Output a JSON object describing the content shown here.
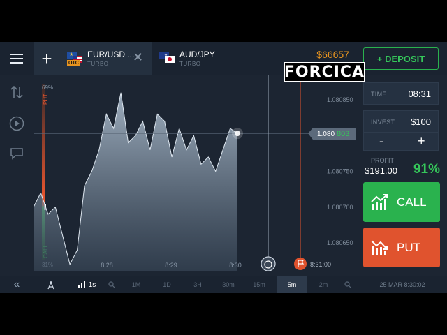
{
  "header": {
    "tabs": [
      {
        "name": "EUR/USD ...",
        "sub": "TURBO",
        "badge": "OTC"
      },
      {
        "name": "AUD/JPY",
        "sub": "TURBO"
      }
    ],
    "close_glyph": "✕",
    "add_glyph": "+",
    "balance": "$66657",
    "deposit_label": "+ DEPOSIT"
  },
  "watermark": "FORCICA",
  "left_rail": {
    "icons": [
      "sort-arrows-icon",
      "play-icon",
      "chat-icon"
    ]
  },
  "chart": {
    "sentiment": {
      "put_pct": "69%",
      "put_label": "PUT",
      "call_label": "CALL",
      "call_pct": "31%"
    },
    "current_price": {
      "prefix": "1.080",
      "suffix": "803"
    },
    "time_labels": [
      "8:28",
      "8:29",
      "8:30"
    ],
    "expiry_time": "8:31:00"
  },
  "chart_data": {
    "type": "area",
    "title": "",
    "xlabel": "",
    "ylabel": "",
    "y_ticks": [
      "1.080850",
      "1.080800",
      "1.080750",
      "1.080700",
      "1.080650"
    ],
    "y_tick_values": [
      1.08085,
      1.0808,
      1.08075,
      1.0807,
      1.08065
    ],
    "x_ticks": [
      "8:28",
      "8:29",
      "8:30"
    ],
    "ylim": [
      1.08061,
      1.08088
    ],
    "current_value": 1.080803,
    "series": [
      {
        "x": [
          "8:27:40",
          "8:27:45",
          "8:27:50",
          "8:27:55",
          "8:28:00",
          "8:28:05",
          "8:28:10",
          "8:28:15",
          "8:28:20",
          "8:28:25",
          "8:28:30",
          "8:28:35",
          "8:28:40",
          "8:28:45",
          "8:28:50",
          "8:28:55",
          "8:29:00",
          "8:29:05",
          "8:29:10",
          "8:29:15",
          "8:29:20",
          "8:29:25",
          "8:29:30",
          "8:29:35",
          "8:29:40",
          "8:29:45",
          "8:29:50",
          "8:29:55",
          "8:30:00"
        ],
        "values": [
          1.0807,
          1.08072,
          1.08069,
          1.0807,
          1.08066,
          1.08062,
          1.08064,
          1.08073,
          1.08075,
          1.08078,
          1.08083,
          1.08081,
          1.08086,
          1.08079,
          1.0808,
          1.08082,
          1.08078,
          1.08083,
          1.08082,
          1.08077,
          1.08081,
          1.08078,
          1.0808,
          1.08076,
          1.08077,
          1.08075,
          1.08078,
          1.08081,
          1.080803
        ]
      }
    ],
    "grid": false
  },
  "trade_panel": {
    "time_label": "TIME",
    "time_value": "08:31",
    "invest_label": "INVEST.",
    "invest_value": "$100",
    "minus": "-",
    "plus": "+",
    "profit_label": "PROFIT",
    "profit_value": "$191.00",
    "profit_pct": "91%",
    "call_label": "CALL",
    "put_label": "PUT"
  },
  "bottom_bar": {
    "collapse": "«",
    "candle_interval": "1s",
    "zoom_levels": [
      "1M",
      "1D",
      "3H",
      "30m",
      "15m",
      "5m",
      "2m"
    ],
    "active_zoom": "5m",
    "datetime": "25 MAR 8:30:02"
  },
  "colors": {
    "call": "#2ab24e",
    "put": "#e0532e",
    "balance": "#e8941f",
    "accent_green": "#35c65a"
  }
}
